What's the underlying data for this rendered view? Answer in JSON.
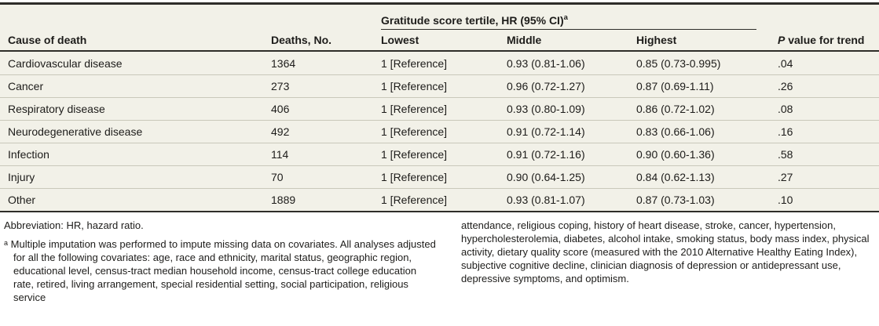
{
  "table": {
    "span_header": {
      "label": "Gratitude score tertile, HR (95% CI)",
      "superscript": "a"
    },
    "columns": [
      "Cause of death",
      "Deaths, No.",
      "Lowest",
      "Middle",
      "Highest"
    ],
    "p_col": {
      "italic": "P",
      "rest": " value for trend"
    },
    "rows": [
      {
        "cause": "Cardiovascular disease",
        "deaths": "1364",
        "lowest": "1 [Reference]",
        "middle": "0.93 (0.81-1.06)",
        "highest": "0.85 (0.73-0.995)",
        "p": ".04"
      },
      {
        "cause": "Cancer",
        "deaths": "273",
        "lowest": "1 [Reference]",
        "middle": "0.96 (0.72-1.27)",
        "highest": "0.87 (0.69-1.11)",
        "p": ".26"
      },
      {
        "cause": "Respiratory disease",
        "deaths": "406",
        "lowest": "1 [Reference]",
        "middle": "0.93 (0.80-1.09)",
        "highest": "0.86 (0.72-1.02)",
        "p": ".08"
      },
      {
        "cause": "Neurodegenerative disease",
        "deaths": "492",
        "lowest": "1 [Reference]",
        "middle": "0.91 (0.72-1.14)",
        "highest": "0.83 (0.66-1.06)",
        "p": ".16"
      },
      {
        "cause": "Infection",
        "deaths": "114",
        "lowest": "1 [Reference]",
        "middle": "0.91 (0.72-1.16)",
        "highest": "0.90 (0.60-1.36)",
        "p": ".58"
      },
      {
        "cause": "Injury",
        "deaths": "70",
        "lowest": "1 [Reference]",
        "middle": "0.90 (0.64-1.25)",
        "highest": "0.84 (0.62-1.13)",
        "p": ".27"
      },
      {
        "cause": "Other",
        "deaths": "1889",
        "lowest": "1 [Reference]",
        "middle": "0.93 (0.81-1.07)",
        "highest": "0.87 (0.73-1.03)",
        "p": ".10"
      }
    ]
  },
  "footnotes": {
    "abbreviation": "Abbreviation: HR, hazard ratio.",
    "marker": "a",
    "left_text": "Multiple imputation was performed to impute missing data on covariates. All analyses adjusted for all the following covariates: age, race and ethnicity, marital status, geographic region, educational level, census-tract median household income, census-tract college education rate, retired, living arrangement, special residential setting, social participation, religious service",
    "right_text": "attendance, religious coping, history of heart disease, stroke, cancer, hypertension, hypercholesterolemia, diabetes, alcohol intake, smoking status, body mass index, physical activity, dietary quality score (measured with the 2010 Alternative Healthy Eating Index), subjective cognitive decline, clinician diagnosis of depression or antidepressant use, depressive symptoms, and optimism."
  },
  "colors": {
    "table_background": "#f2f1e8",
    "rule_dark": "#2e2d29",
    "row_separator": "#c9c8ba",
    "text": "#1d1c1a"
  }
}
